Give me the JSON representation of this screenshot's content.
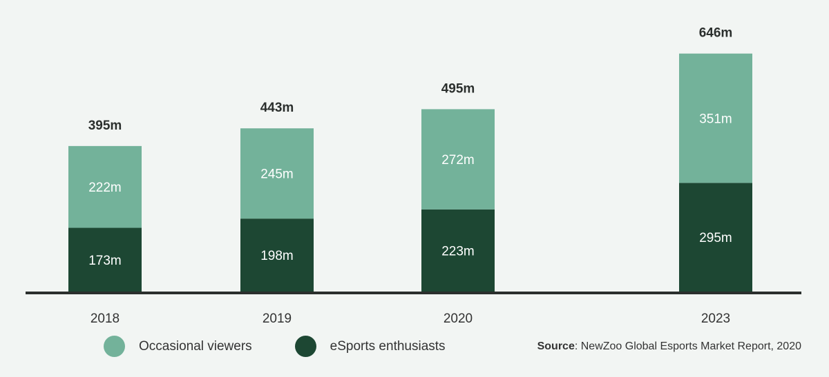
{
  "chart_data": {
    "type": "bar",
    "stacked": true,
    "categories": [
      "2018",
      "2019",
      "2020",
      "2023"
    ],
    "series": [
      {
        "name": "eSports enthusiasts",
        "values": [
          173,
          198,
          223,
          295
        ],
        "labels": [
          "173m",
          "198m",
          "223m",
          "295m"
        ],
        "color": "#1d4733"
      },
      {
        "name": "Occasional viewers",
        "values": [
          222,
          245,
          272,
          351
        ],
        "labels": [
          "222m",
          "245m",
          "272m",
          "351m"
        ],
        "color": "#73b29a"
      }
    ],
    "totals": [
      395,
      443,
      495,
      646
    ],
    "total_labels": [
      "395m",
      "443m",
      "495m",
      "646m"
    ],
    "ylim": [
      0,
      700
    ],
    "legend_position": "bottom-left"
  },
  "legend": [
    {
      "label": "Occasional viewers",
      "color": "#73b29a"
    },
    {
      "label": "eSports enthusiasts",
      "color": "#1d4733"
    }
  ],
  "source": {
    "key": "Source",
    "text": ": NewZoo Global Esports Market Report, 2020"
  },
  "colors": {
    "background": "#f2f5f3",
    "axis": "#2b2f2d",
    "text": "#333333"
  }
}
